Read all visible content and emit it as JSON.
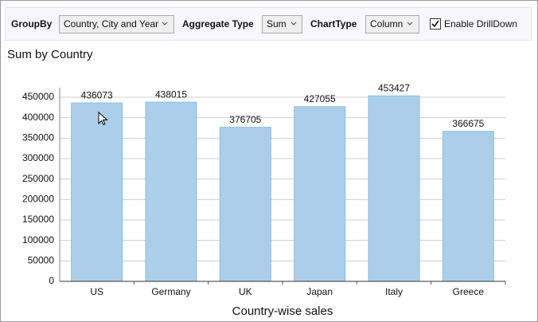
{
  "toolbar": {
    "group_by_label": "GroupBy",
    "group_by_value": "Country, City and Year",
    "aggregate_label": "Aggregate Type",
    "aggregate_value": "Sum",
    "chart_type_label": "ChartType",
    "chart_type_value": "Column",
    "drilldown_label": "Enable DrillDown",
    "drilldown_checked": true
  },
  "chart_data": {
    "type": "bar",
    "title": "Sum  by  Country",
    "x_label": "Country-wise sales",
    "categories": [
      "US",
      "Germany",
      "UK",
      "Japan",
      "Italy",
      "Greece"
    ],
    "values": [
      436073,
      438015,
      376705,
      427055,
      453427,
      366675
    ],
    "color": "#abcfeb",
    "ylim": [
      0,
      450000
    ],
    "yticks": [
      0,
      50000,
      100000,
      150000,
      200000,
      250000,
      300000,
      350000,
      400000,
      450000
    ],
    "grid": true
  }
}
